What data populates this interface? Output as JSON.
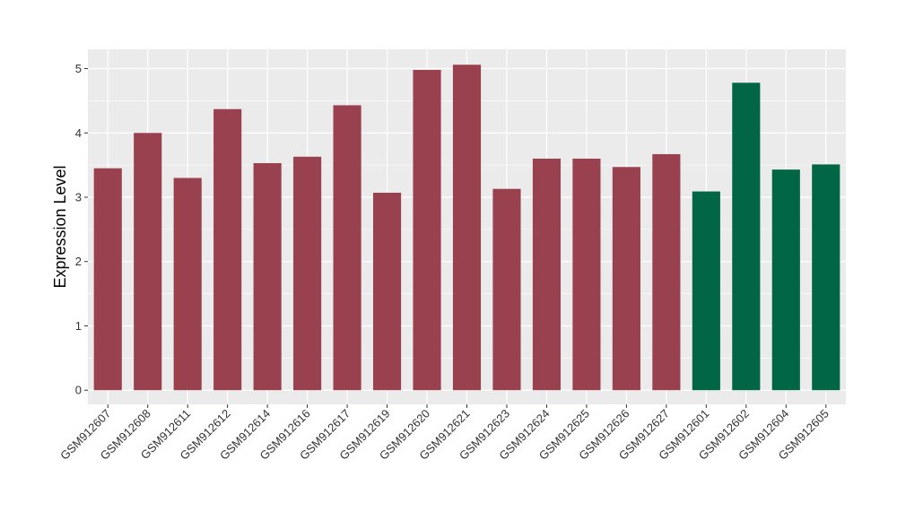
{
  "chart_data": {
    "type": "bar",
    "title": "",
    "xlabel": "",
    "ylabel": "Expression Level",
    "ylim": [
      -0.22,
      5.3
    ],
    "yticks": [
      0,
      1,
      2,
      3,
      4,
      5
    ],
    "grid": true,
    "categories": [
      "GSM912607",
      "GSM912608",
      "GSM912611",
      "GSM912612",
      "GSM912614",
      "GSM912616",
      "GSM912617",
      "GSM912619",
      "GSM912620",
      "GSM912621",
      "GSM912623",
      "GSM912624",
      "GSM912625",
      "GSM912626",
      "GSM912627",
      "GSM912601",
      "GSM912602",
      "GSM912604",
      "GSM912605"
    ],
    "values": [
      3.45,
      4.0,
      3.3,
      4.37,
      3.53,
      3.63,
      4.43,
      3.07,
      4.98,
      5.06,
      3.13,
      3.6,
      3.6,
      3.47,
      3.67,
      3.09,
      4.78,
      3.43,
      3.51
    ],
    "groups": [
      "a",
      "a",
      "a",
      "a",
      "a",
      "a",
      "a",
      "a",
      "a",
      "a",
      "a",
      "a",
      "a",
      "a",
      "a",
      "b",
      "b",
      "b",
      "b"
    ],
    "colors": {
      "a": "#9a4150",
      "b": "#006646"
    },
    "panel_background": "#ebebeb",
    "gridline_color": "#ffffff"
  }
}
